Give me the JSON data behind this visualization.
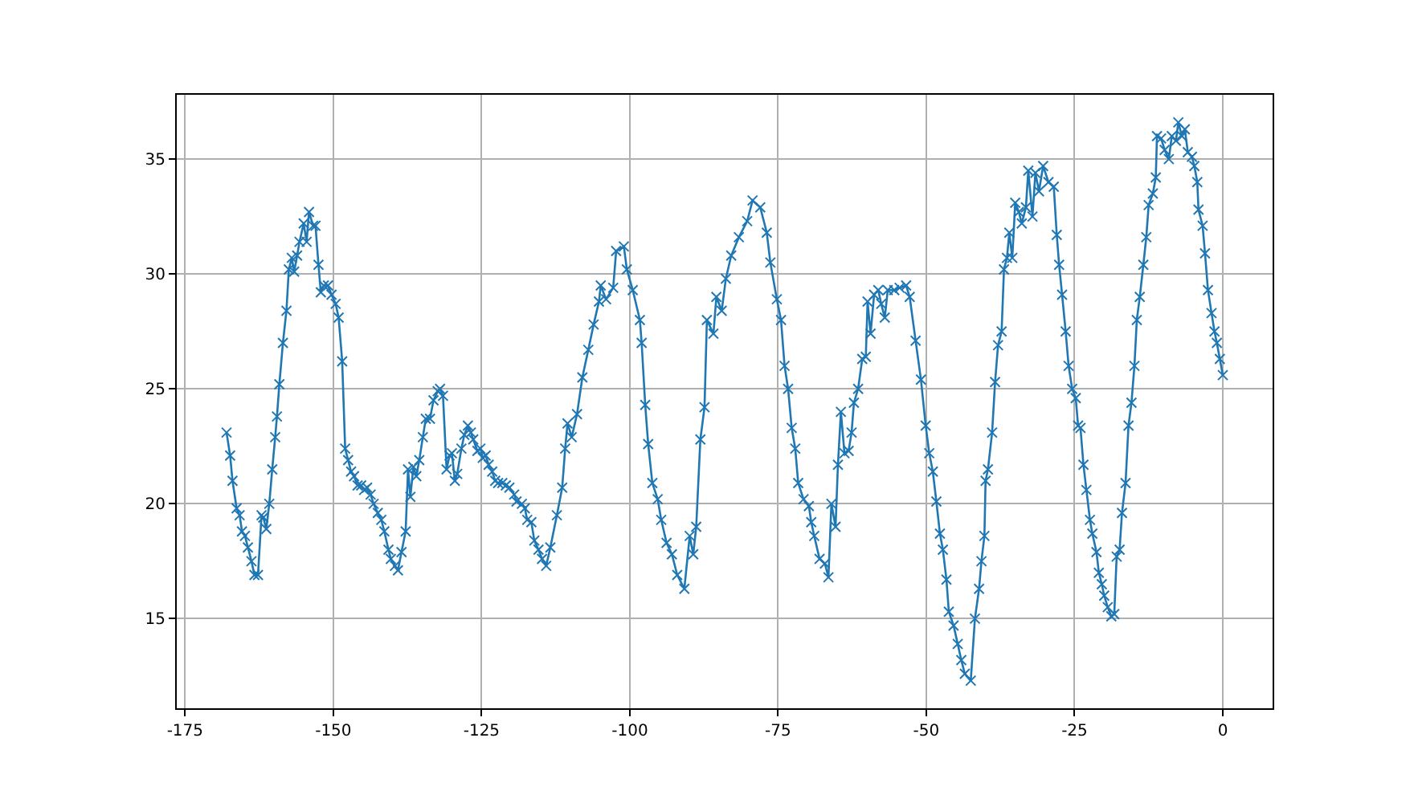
{
  "chart_data": {
    "type": "line",
    "marker": "cross",
    "grid": true,
    "xlim": [
      -176.4,
      8.4
    ],
    "ylim": [
      11.1,
      37.8
    ],
    "xticks": [
      -175,
      -150,
      -125,
      -100,
      -75,
      -50,
      -25,
      0
    ],
    "yticks": [
      15,
      20,
      25,
      30,
      35
    ],
    "x": [
      -168.0,
      -167.4,
      -167.0,
      -166.3,
      -165.8,
      -165.4,
      -164.9,
      -164.4,
      -163.8,
      -163.3,
      -162.7,
      -162.1,
      -161.8,
      -161.3,
      -160.8,
      -160.3,
      -159.8,
      -159.5,
      -159.1,
      -158.5,
      -157.9,
      -157.5,
      -157.0,
      -156.6,
      -156.1,
      -155.7,
      -155.0,
      -154.5,
      -154.1,
      -153.4,
      -153.0,
      -152.5,
      -152.1,
      -151.6,
      -150.9,
      -150.3,
      -149.6,
      -149.1,
      -148.5,
      -148.0,
      -147.5,
      -147.0,
      -146.5,
      -145.9,
      -145.3,
      -144.8,
      -144.3,
      -143.7,
      -143.2,
      -142.5,
      -141.9,
      -141.4,
      -140.7,
      -140.3,
      -139.6,
      -139.1,
      -138.5,
      -137.8,
      -137.4,
      -137.0,
      -136.5,
      -136.0,
      -135.5,
      -134.9,
      -134.4,
      -133.7,
      -133.1,
      -132.4,
      -132.0,
      -131.5,
      -130.9,
      -130.4,
      -130.0,
      -129.5,
      -129.1,
      -128.4,
      -127.9,
      -127.3,
      -126.8,
      -126.4,
      -125.7,
      -125.2,
      -124.8,
      -124.3,
      -123.8,
      -123.2,
      -122.7,
      -122.2,
      -121.5,
      -120.9,
      -120.3,
      -119.5,
      -119.1,
      -118.2,
      -117.7,
      -117.3,
      -116.6,
      -116.1,
      -115.4,
      -114.8,
      -114.1,
      -113.4,
      -112.3,
      -111.4,
      -110.9,
      -110.5,
      -109.8,
      -108.9,
      -108.0,
      -107.0,
      -106.1,
      -105.2,
      -104.9,
      -104.0,
      -102.8,
      -102.3,
      -101.0,
      -100.5,
      -99.5,
      -98.3,
      -98.0,
      -97.4,
      -96.9,
      -96.2,
      -95.3,
      -94.7,
      -93.8,
      -92.9,
      -92.0,
      -90.8,
      -89.9,
      -89.3,
      -88.8,
      -88.1,
      -87.4,
      -87.0,
      -85.9,
      -85.4,
      -84.5,
      -83.8,
      -82.9,
      -81.6,
      -80.2,
      -79.3,
      -78.0,
      -76.9,
      -76.3,
      -75.2,
      -74.5,
      -73.9,
      -73.3,
      -72.7,
      -72.1,
      -71.6,
      -70.7,
      -69.8,
      -69.4,
      -68.9,
      -68.0,
      -67.1,
      -66.5,
      -66.0,
      -65.3,
      -64.9,
      -64.4,
      -63.8,
      -63.1,
      -62.6,
      -62.2,
      -61.5,
      -60.8,
      -60.2,
      -59.9,
      -59.4,
      -58.8,
      -58.1,
      -57.6,
      -57.0,
      -56.5,
      -55.4,
      -54.5,
      -53.4,
      -52.8,
      -51.8,
      -50.9,
      -50.1,
      -49.5,
      -48.9,
      -48.3,
      -47.7,
      -47.2,
      -46.6,
      -46.2,
      -45.4,
      -44.7,
      -44.1,
      -43.5,
      -42.5,
      -41.8,
      -41.1,
      -40.7,
      -40.2,
      -40.0,
      -39.6,
      -38.9,
      -38.4,
      -37.9,
      -37.3,
      -36.9,
      -36.4,
      -36.0,
      -35.5,
      -35.0,
      -34.4,
      -33.9,
      -33.2,
      -32.8,
      -32.1,
      -31.6,
      -31.0,
      -30.3,
      -29.4,
      -28.5,
      -28.0,
      -27.6,
      -27.1,
      -26.5,
      -26.0,
      -25.4,
      -24.8,
      -24.4,
      -24.0,
      -23.5,
      -23.0,
      -22.4,
      -22.0,
      -21.3,
      -20.9,
      -20.4,
      -20.0,
      -19.4,
      -18.8,
      -18.3,
      -17.9,
      -17.4,
      -17.0,
      -16.4,
      -15.9,
      -15.4,
      -14.9,
      -14.5,
      -14.0,
      -13.4,
      -12.9,
      -12.5,
      -11.8,
      -11.3,
      -11.1,
      -10.4,
      -9.8,
      -9.1,
      -8.6,
      -7.9,
      -7.5,
      -6.9,
      -6.4,
      -5.9,
      -5.2,
      -4.8,
      -4.3,
      -4.1,
      -3.4,
      -3.0,
      -2.5,
      -1.9,
      -1.4,
      -1.0,
      -0.5,
      0.0
    ],
    "series": [
      {
        "color": "#1f77b4",
        "values": [
          23.1,
          22.1,
          21.0,
          19.8,
          19.5,
          18.8,
          18.6,
          18.1,
          17.5,
          16.9,
          16.9,
          19.5,
          19.4,
          18.9,
          20.0,
          21.5,
          22.9,
          23.8,
          25.2,
          27.0,
          28.4,
          30.2,
          30.7,
          30.1,
          30.8,
          31.4,
          32.2,
          31.4,
          32.7,
          32.1,
          32.1,
          30.4,
          29.2,
          29.5,
          29.5,
          29.1,
          28.7,
          28.1,
          26.2,
          22.4,
          21.9,
          21.4,
          21.2,
          20.8,
          20.8,
          20.6,
          20.7,
          20.4,
          20.0,
          19.6,
          19.3,
          18.8,
          18.0,
          17.6,
          17.3,
          17.1,
          17.9,
          18.8,
          21.5,
          20.3,
          21.6,
          21.2,
          21.9,
          22.9,
          23.7,
          23.7,
          24.5,
          24.9,
          25.0,
          24.7,
          21.5,
          22.1,
          22.2,
          21.0,
          21.3,
          22.4,
          23.0,
          23.4,
          23.1,
          22.8,
          22.3,
          22.4,
          22.0,
          22.1,
          21.7,
          21.4,
          21.0,
          20.9,
          20.9,
          20.8,
          20.7,
          20.4,
          20.1,
          20.0,
          19.8,
          19.3,
          19.2,
          18.4,
          18.0,
          17.6,
          17.3,
          18.1,
          19.5,
          20.7,
          22.4,
          23.5,
          22.9,
          23.9,
          25.5,
          26.7,
          27.8,
          28.8,
          29.5,
          28.9,
          29.4,
          31.0,
          31.2,
          30.2,
          29.3,
          28.0,
          27.0,
          24.3,
          22.6,
          20.9,
          20.2,
          19.3,
          18.3,
          17.8,
          16.9,
          16.3,
          18.6,
          17.8,
          19.0,
          22.8,
          24.2,
          28.0,
          27.4,
          29.0,
          28.4,
          29.8,
          30.8,
          31.6,
          32.3,
          33.2,
          32.9,
          31.8,
          30.5,
          28.9,
          28.0,
          26.0,
          25.0,
          23.3,
          22.4,
          20.9,
          20.2,
          19.9,
          19.2,
          18.6,
          17.6,
          17.4,
          16.8,
          20.0,
          19.0,
          21.7,
          24.0,
          22.2,
          22.3,
          23.1,
          24.4,
          25.0,
          26.3,
          26.4,
          28.8,
          27.4,
          29.1,
          29.3,
          28.7,
          28.1,
          29.3,
          29.3,
          29.4,
          29.5,
          29.0,
          27.1,
          25.4,
          23.4,
          22.2,
          21.4,
          20.1,
          18.7,
          18.0,
          16.7,
          15.3,
          14.7,
          13.9,
          13.2,
          12.6,
          12.3,
          15.0,
          16.3,
          17.5,
          18.6,
          21.0,
          21.5,
          23.1,
          25.3,
          26.9,
          27.5,
          30.2,
          30.7,
          31.8,
          30.7,
          33.1,
          32.7,
          32.2,
          32.9,
          34.5,
          32.5,
          34.4,
          33.6,
          34.7,
          34.0,
          33.8,
          31.7,
          30.4,
          29.1,
          27.5,
          26.0,
          25.0,
          24.6,
          23.4,
          23.3,
          21.7,
          20.6,
          19.3,
          18.7,
          17.9,
          17.0,
          16.5,
          16.0,
          15.5,
          15.1,
          15.2,
          17.7,
          18.0,
          19.6,
          20.9,
          23.4,
          24.4,
          26.0,
          28.0,
          29.0,
          30.4,
          31.6,
          33.0,
          33.5,
          34.2,
          36.0,
          35.9,
          35.4,
          35.0,
          36.0,
          35.8,
          36.6,
          36.0,
          36.3,
          35.3,
          35.1,
          34.7,
          34.0,
          32.8,
          32.1,
          30.9,
          29.3,
          28.3,
          27.5,
          27.0,
          26.3,
          25.6
        ]
      }
    ]
  }
}
